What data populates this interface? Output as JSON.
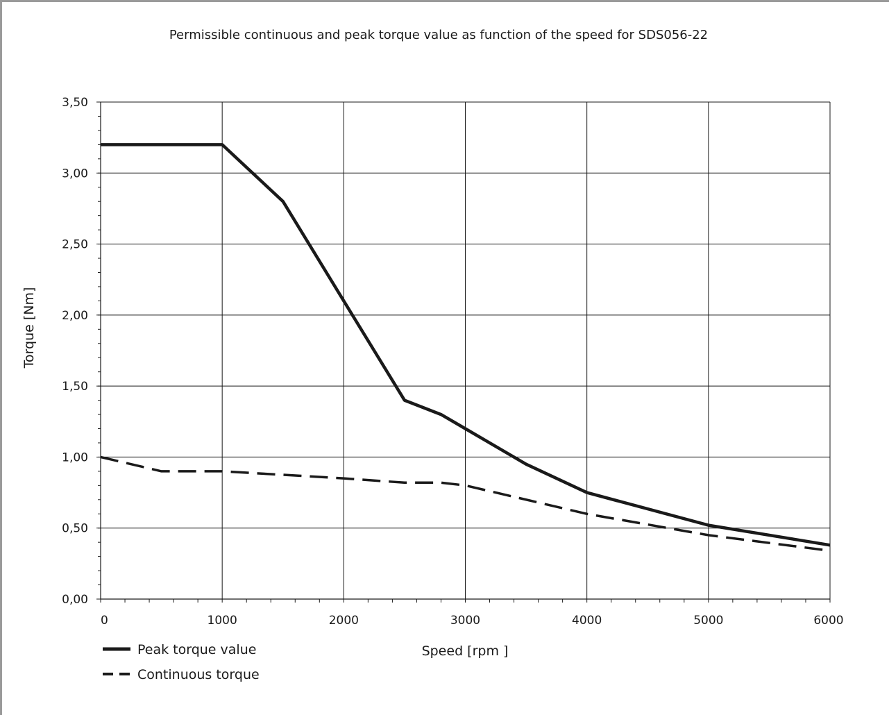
{
  "chart_data": {
    "type": "line",
    "title": "Permissible continuous and peak torque value as function of the speed for SDS056-22",
    "xlabel": "Speed [rpm ]",
    "ylabel": "Torque [Nm]",
    "xlim": [
      0,
      6000
    ],
    "ylim": [
      0,
      3.5
    ],
    "x_ticks": [
      0,
      1000,
      2000,
      3000,
      4000,
      5000,
      6000
    ],
    "x_tick_labels": [
      "0",
      "1000",
      "2000",
      "3000",
      "4000",
      "5000",
      "6000"
    ],
    "y_ticks": [
      0,
      0.5,
      1.0,
      1.5,
      2.0,
      2.5,
      3.0,
      3.5
    ],
    "y_tick_labels": [
      "0,00",
      "0,50",
      "1,00",
      "1,50",
      "2,00",
      "2,50",
      "3,00",
      "3,50"
    ],
    "grid": true,
    "legend_position": "bottom-left",
    "series": [
      {
        "name": "Peak torque value",
        "style": "solid",
        "color": "#1a1a1a",
        "x": [
          0,
          1000,
          1500,
          2000,
          2500,
          2800,
          3000,
          3500,
          4000,
          5000,
          6000
        ],
        "y": [
          3.2,
          3.2,
          2.8,
          2.1,
          1.4,
          1.3,
          1.2,
          0.95,
          0.75,
          0.52,
          0.38
        ]
      },
      {
        "name": "Continuous torque",
        "style": "dashed",
        "color": "#1a1a1a",
        "x": [
          0,
          500,
          1000,
          2000,
          2500,
          2800,
          3000,
          4000,
          5000,
          6000
        ],
        "y": [
          1.0,
          0.9,
          0.9,
          0.85,
          0.82,
          0.82,
          0.8,
          0.6,
          0.45,
          0.34
        ]
      }
    ]
  }
}
